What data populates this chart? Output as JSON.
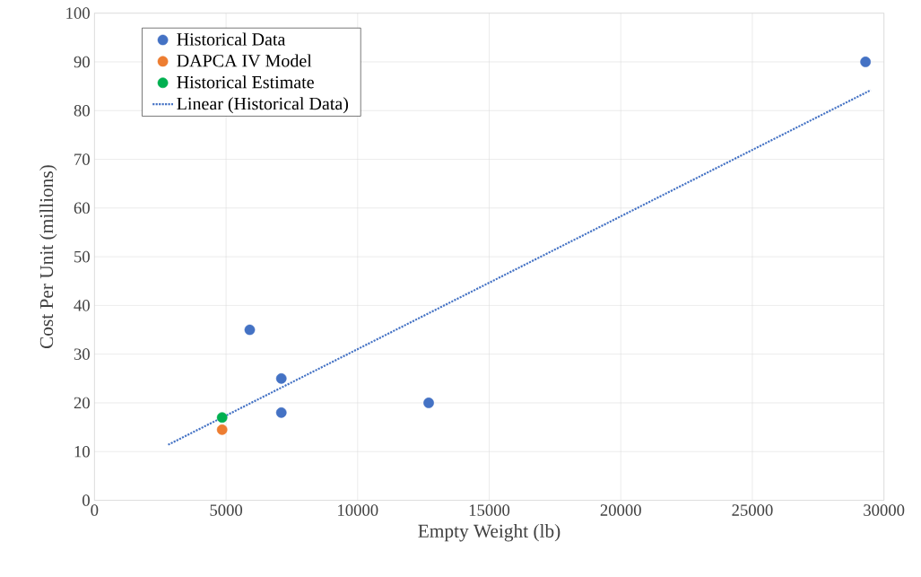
{
  "chart_data": {
    "type": "scatter",
    "xlabel": "Empty Weight (lb)",
    "ylabel": "Cost Per Unit (millions)",
    "xlim": [
      0,
      30000
    ],
    "ylim": [
      0,
      100
    ],
    "xticks": [
      0,
      5000,
      10000,
      15000,
      20000,
      25000,
      30000
    ],
    "yticks": [
      0,
      10,
      20,
      30,
      40,
      50,
      60,
      70,
      80,
      90,
      100
    ],
    "grid": true,
    "legend": "top left",
    "series": [
      {
        "name": "Historical Data",
        "color": "#4472c4",
        "x": [
          29300,
          5900,
          7100,
          7100,
          12700
        ],
        "values": [
          90,
          35,
          25,
          18,
          20
        ],
        "marker": "circle"
      },
      {
        "name": "DAPCA IV Model",
        "color": "#ed7d31",
        "x": [
          4850
        ],
        "values": [
          14.5
        ],
        "marker": "circle"
      },
      {
        "name": "Historical Estimate",
        "color": "#00b050",
        "x": [
          4850
        ],
        "values": [
          17
        ],
        "marker": "circle"
      },
      {
        "name": "Linear (Historical Data)",
        "type": "line",
        "line_style": "dotted",
        "marker": "none",
        "color": "#4472c4",
        "x": [
          2800,
          29500
        ],
        "values": [
          11.4,
          84.2
        ]
      }
    ]
  }
}
